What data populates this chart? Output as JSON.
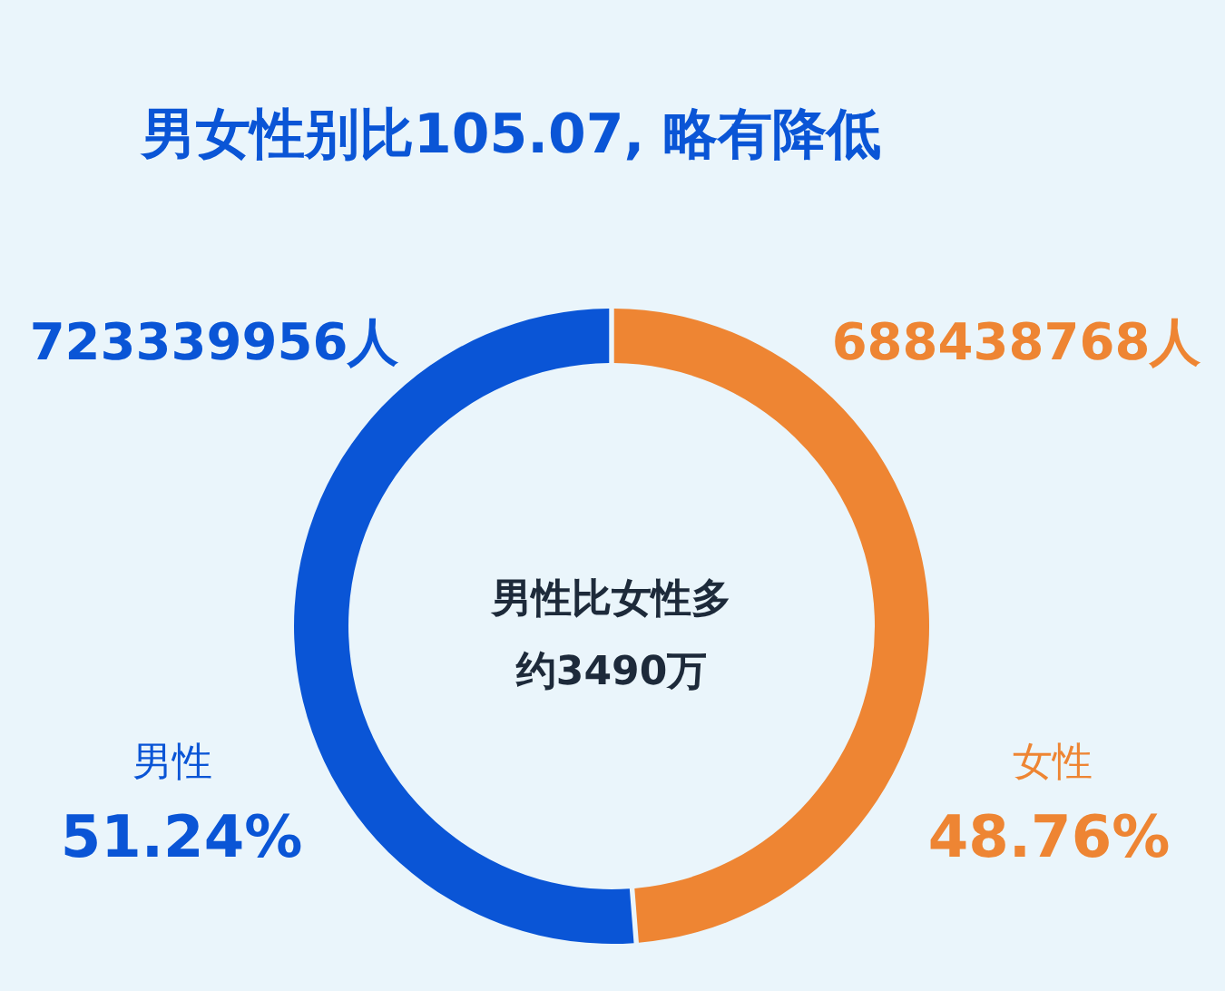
{
  "chart_data": {
    "type": "donut",
    "title": "男女性别比105.07, 略有降低",
    "categories": [
      "男性",
      "女性"
    ],
    "values": [
      51.24,
      48.76
    ],
    "value_labels": [
      "51.24%",
      "48.76%"
    ],
    "colors": [
      "#0a55d6",
      "#ee8533"
    ],
    "annotations": [
      "723339956人",
      "688438768人",
      "男性比女性多",
      "约3490万"
    ]
  }
}
